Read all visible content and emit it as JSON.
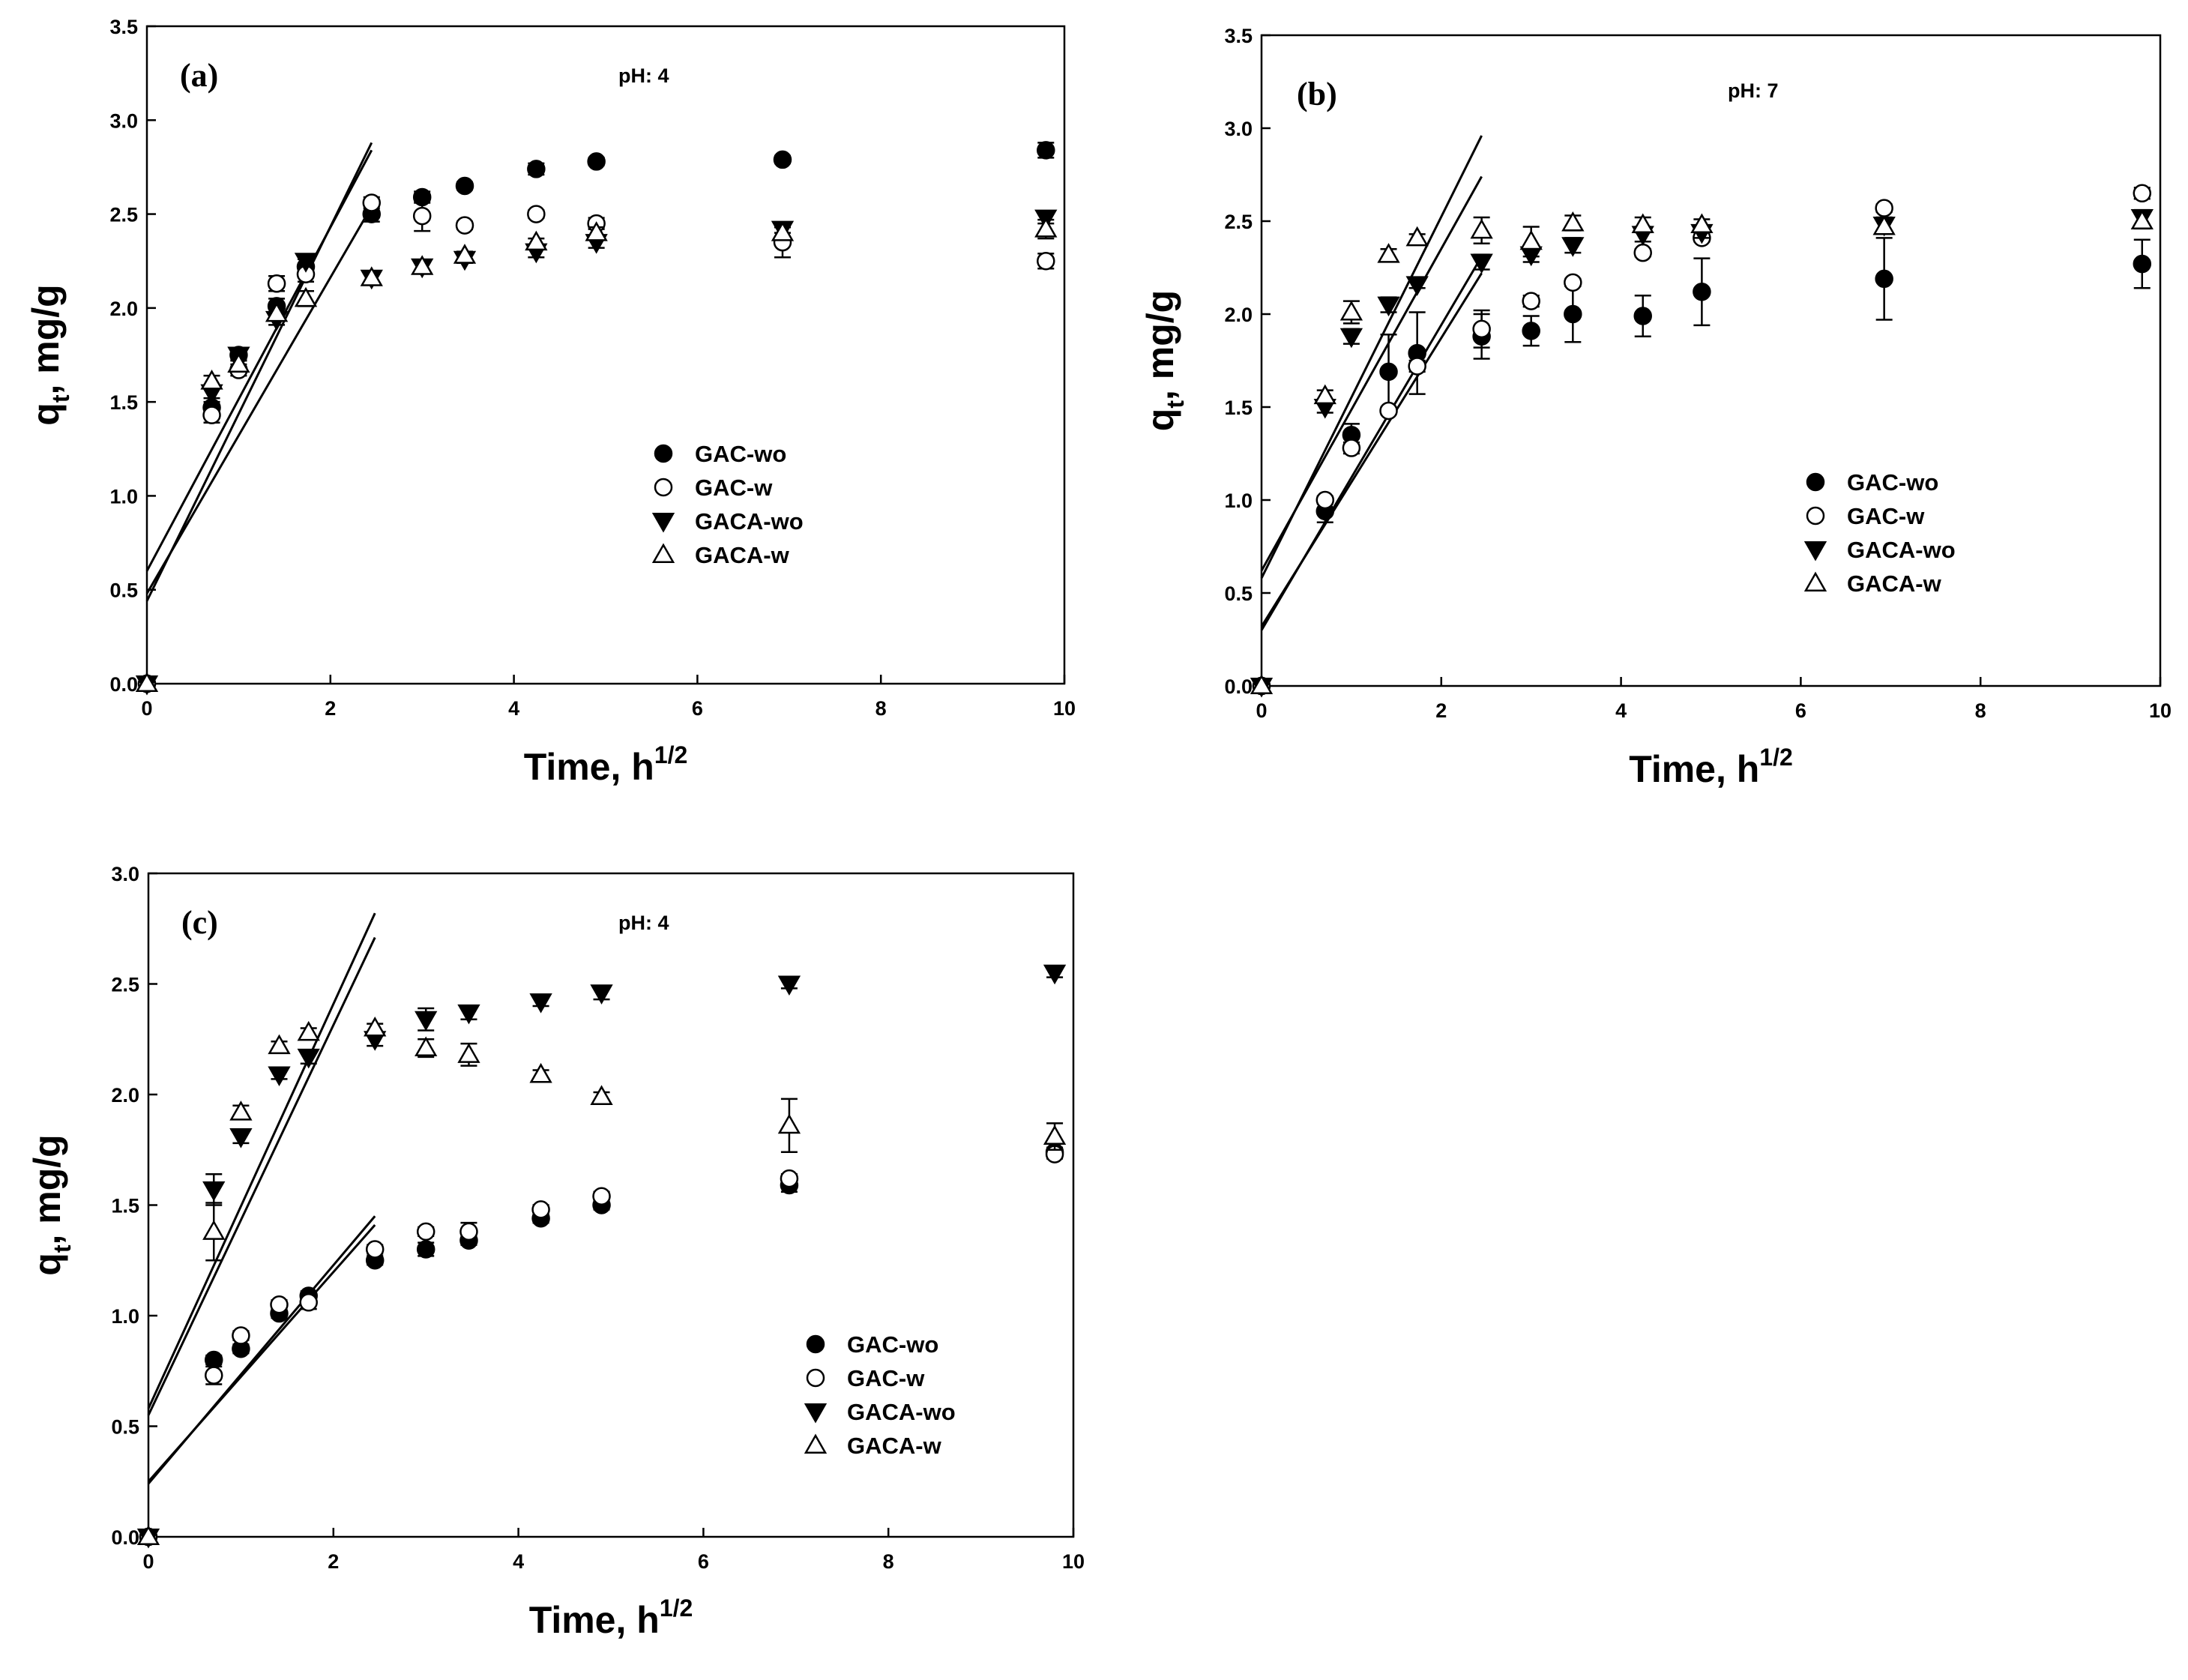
{
  "figure_title": "",
  "chart_data": [
    {
      "id": "a",
      "type": "scatter",
      "panel_label": "(a)",
      "annotation": "pH: 4",
      "xlabel_main": "Time, h",
      "xlabel_sup": "1/2",
      "ylabel_main": "q",
      "ylabel_sub": "t",
      "ylabel_unit": ", mg/g",
      "xlim": [
        0,
        10
      ],
      "ylim": [
        0,
        3.5
      ],
      "x_ticks": [
        0,
        2,
        4,
        6,
        8,
        10
      ],
      "x_tick_labels": [
        "0",
        "2",
        "4",
        "6",
        "8",
        "10"
      ],
      "y_ticks": [
        0,
        0.5,
        1.0,
        1.5,
        2.0,
        2.5,
        3.0,
        3.5
      ],
      "y_tick_labels": [
        "0.0",
        "0.5",
        "1.0",
        "1.5",
        "2.0",
        "2.5",
        "3.0",
        "3.5"
      ],
      "legend_position": "right-middle",
      "x": [
        0,
        0.707,
        1.0,
        1.414,
        1.732,
        2.449,
        3.0,
        3.464,
        4.243,
        4.899,
        6.928,
        9.798
      ],
      "series": [
        {
          "name": "GAC-wo",
          "marker": "filled-circle",
          "values": [
            0,
            1.47,
            1.75,
            2.01,
            2.22,
            2.5,
            2.59,
            2.65,
            2.74,
            2.78,
            2.79,
            2.84
          ],
          "errors": [
            0,
            0.03,
            0.03,
            0.04,
            0.04,
            0.04,
            0.03,
            0.02,
            0.03,
            0.02,
            0.02,
            0.04
          ]
        },
        {
          "name": "GAC-w",
          "marker": "open-circle",
          "values": [
            0,
            1.43,
            1.67,
            2.13,
            2.18,
            2.56,
            2.49,
            2.44,
            2.5,
            2.45,
            2.35,
            2.25
          ],
          "errors": [
            0,
            0.04,
            0.03,
            0.04,
            0.04,
            0.03,
            0.08,
            0.02,
            0.02,
            0.03,
            0.08,
            0.04
          ]
        },
        {
          "name": "GACA-wo",
          "marker": "filled-triangle-down",
          "values": [
            0,
            1.55,
            1.75,
            1.94,
            2.25,
            2.16,
            2.22,
            2.26,
            2.3,
            2.35,
            2.42,
            2.48
          ],
          "errors": [
            0,
            0.03,
            0.03,
            0.03,
            0.03,
            0.03,
            0.02,
            0.02,
            0.03,
            0.03,
            0.02,
            0.03
          ]
        },
        {
          "name": "GACA-w",
          "marker": "open-triangle-up",
          "values": [
            0,
            1.61,
            1.7,
            1.97,
            2.05,
            2.16,
            2.22,
            2.28,
            2.35,
            2.4,
            2.4,
            2.42
          ],
          "errors": [
            0,
            0.03,
            0.03,
            0.03,
            0.04,
            0.03,
            0.02,
            0.02,
            0.02,
            0.03,
            0.03,
            0.05
          ]
        }
      ],
      "fit_lines": [
        {
          "x": [
            0,
            2.449
          ],
          "y": [
            0.6,
            2.84
          ]
        },
        {
          "x": [
            0,
            2.449
          ],
          "y": [
            0.44,
            2.88
          ]
        },
        {
          "x": [
            0,
            2.449
          ],
          "y": [
            0.48,
            2.54
          ]
        }
      ]
    },
    {
      "id": "b",
      "type": "scatter",
      "panel_label": "(b)",
      "annotation": "pH: 7",
      "xlabel_main": "Time, h",
      "xlabel_sup": "1/2",
      "ylabel_main": "q",
      "ylabel_sub": "t",
      "ylabel_unit": ", mg/g",
      "xlim": [
        0,
        10
      ],
      "ylim": [
        0,
        3.5
      ],
      "x_ticks": [
        0,
        2,
        4,
        6,
        8,
        10
      ],
      "x_tick_labels": [
        "0",
        "2",
        "4",
        "6",
        "8",
        "10"
      ],
      "y_ticks": [
        0,
        0.5,
        1.0,
        1.5,
        2.0,
        2.5,
        3.0,
        3.5
      ],
      "y_tick_labels": [
        "0.0",
        "0.5",
        "1.0",
        "1.5",
        "2.0",
        "2.5",
        "3.0",
        "3.5"
      ],
      "legend_position": "right-middle",
      "x": [
        0,
        0.707,
        1.0,
        1.414,
        1.732,
        2.449,
        3.0,
        3.464,
        4.243,
        4.899,
        6.928,
        9.798
      ],
      "series": [
        {
          "name": "GAC-wo",
          "marker": "filled-circle",
          "values": [
            0,
            0.94,
            1.35,
            1.69,
            1.79,
            1.88,
            1.91,
            2.0,
            1.99,
            2.12,
            2.19,
            2.27
          ],
          "errors": [
            0,
            0.06,
            0.06,
            0.2,
            0.22,
            0.12,
            0.08,
            0.15,
            0.11,
            0.18,
            0.22,
            0.13
          ]
        },
        {
          "name": "GAC-w",
          "marker": "open-circle",
          "values": [
            0,
            1.0,
            1.28,
            1.48,
            1.72,
            1.92,
            2.07,
            2.17,
            2.33,
            2.41,
            2.57,
            2.65
          ],
          "errors": [
            0,
            0.02,
            0.03,
            0.02,
            0.03,
            0.1,
            0.03,
            0.02,
            0.02,
            0.02,
            0.02,
            0.03
          ]
        },
        {
          "name": "GACA-wo",
          "marker": "filled-triangle-down",
          "values": [
            0,
            1.5,
            1.88,
            2.05,
            2.16,
            2.28,
            2.32,
            2.37,
            2.43,
            2.44,
            2.48,
            2.52
          ],
          "errors": [
            0,
            0.03,
            0.04,
            0.04,
            0.02,
            0.04,
            0.04,
            0.04,
            0.04,
            0.03,
            0.04,
            0.04
          ]
        },
        {
          "name": "GACA-w",
          "marker": "open-triangle-up",
          "values": [
            0,
            1.56,
            2.01,
            2.32,
            2.41,
            2.45,
            2.39,
            2.49,
            2.48,
            2.48,
            2.47,
            2.5
          ],
          "errors": [
            0,
            0.03,
            0.06,
            0.03,
            0.02,
            0.07,
            0.08,
            0.04,
            0.04,
            0.03,
            0.03,
            0.04
          ]
        }
      ],
      "fit_lines": [
        {
          "x": [
            0,
            2.449
          ],
          "y": [
            0.58,
            2.96
          ]
        },
        {
          "x": [
            0,
            2.449
          ],
          "y": [
            0.62,
            2.74
          ]
        },
        {
          "x": [
            0,
            2.449
          ],
          "y": [
            0.3,
            2.31
          ]
        },
        {
          "x": [
            0,
            2.449
          ],
          "y": [
            0.32,
            2.22
          ]
        }
      ]
    },
    {
      "id": "c",
      "type": "scatter",
      "panel_label": "(c)",
      "annotation": "pH: 4",
      "xlabel_main": "Time, h",
      "xlabel_sup": "1/2",
      "ylabel_main": "q",
      "ylabel_sub": "t",
      "ylabel_unit": ", mg/g",
      "xlim": [
        0,
        10
      ],
      "ylim": [
        0,
        3.0
      ],
      "x_ticks": [
        0,
        2,
        4,
        6,
        8,
        10
      ],
      "x_tick_labels": [
        "0",
        "2",
        "4",
        "6",
        "8",
        "10"
      ],
      "y_ticks": [
        0,
        0.5,
        1.0,
        1.5,
        2.0,
        2.5,
        3.0
      ],
      "y_tick_labels": [
        "0.0",
        "0.5",
        "1.0",
        "1.5",
        "2.0",
        "2.5",
        "3.0"
      ],
      "legend_position": "right-middle",
      "x": [
        0,
        0.707,
        1.0,
        1.414,
        1.732,
        2.449,
        3.0,
        3.464,
        4.243,
        4.899,
        6.928,
        9.798
      ],
      "series": [
        {
          "name": "GAC-wo",
          "marker": "filled-circle",
          "values": [
            0,
            0.8,
            0.85,
            1.01,
            1.09,
            1.25,
            1.3,
            1.34,
            1.44,
            1.5,
            1.59,
            1.74
          ],
          "errors": [
            0,
            0.02,
            0.02,
            0.02,
            0.02,
            0.02,
            0.03,
            0.02,
            0.02,
            0.02,
            0.03,
            0.02
          ]
        },
        {
          "name": "GAC-w",
          "marker": "open-circle",
          "values": [
            0,
            0.73,
            0.91,
            1.05,
            1.06,
            1.3,
            1.38,
            1.38,
            1.48,
            1.54,
            1.62,
            1.73
          ],
          "errors": [
            0,
            0.04,
            0.02,
            0.02,
            0.03,
            0.02,
            0.02,
            0.04,
            0.02,
            0.02,
            0.02,
            0.02
          ]
        },
        {
          "name": "GACA-wo",
          "marker": "filled-triangle-down",
          "values": [
            0,
            1.57,
            1.81,
            2.09,
            2.17,
            2.25,
            2.34,
            2.37,
            2.42,
            2.46,
            2.5,
            2.55
          ],
          "errors": [
            0,
            0.07,
            0.03,
            0.02,
            0.03,
            0.03,
            0.05,
            0.03,
            0.02,
            0.03,
            0.02,
            0.02
          ]
        },
        {
          "name": "GACA-w",
          "marker": "open-triangle-up",
          "values": [
            0,
            1.38,
            1.92,
            2.22,
            2.28,
            2.3,
            2.21,
            2.18,
            2.09,
            1.99,
            1.86,
            1.81
          ],
          "errors": [
            0,
            0.13,
            0.03,
            0.02,
            0.02,
            0.02,
            0.04,
            0.05,
            0.02,
            0.02,
            0.12,
            0.06
          ]
        }
      ],
      "fit_lines": [
        {
          "x": [
            0,
            2.449
          ],
          "y": [
            0.58,
            2.82
          ]
        },
        {
          "x": [
            0,
            2.449
          ],
          "y": [
            0.55,
            2.71
          ]
        },
        {
          "x": [
            0,
            2.449
          ],
          "y": [
            0.24,
            1.45
          ]
        },
        {
          "x": [
            0,
            2.449
          ],
          "y": [
            0.25,
            1.41
          ]
        }
      ]
    }
  ]
}
